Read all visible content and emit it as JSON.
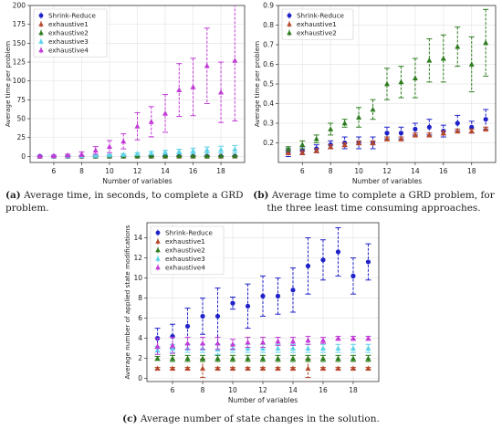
{
  "captions": {
    "a_tag": "(a)",
    "a_text": "Average time, in seconds, to complete a GRD problem.",
    "b_tag": "(b)",
    "b_text": "Average time to complete a GRD problem, for the three least time consuming approaches.",
    "c_tag": "(c)",
    "c_text": "Average number of state changes in the solution."
  },
  "colors": {
    "Shrink-Reduce": "#1f22c8",
    "exhaustive1": "#b5482a",
    "exhaustive2": "#2e7d1f",
    "exhaustive3": "#5fd3e8",
    "exhaustive4": "#c23bd6"
  },
  "chart_data": [
    {
      "type": "scatter",
      "title": "",
      "xlabel": "Number of variables",
      "ylabel": "Average time per problem",
      "xlim": [
        4.3,
        19.7
      ],
      "ylim": [
        -8,
        200
      ],
      "xticks": [
        6,
        8,
        10,
        12,
        14,
        16,
        18
      ],
      "yticks": [
        0,
        25,
        50,
        75,
        100,
        125,
        150,
        175,
        200
      ],
      "legend_position": "top-left",
      "grid": true,
      "series": [
        {
          "name": "Shrink-Reduce",
          "marker": "circle",
          "x": [
            5,
            6,
            7,
            8,
            9,
            10,
            11,
            12,
            13,
            14,
            15,
            16,
            17,
            18,
            19
          ],
          "y": [
            0.15,
            0.16,
            0.17,
            0.19,
            0.2,
            0.2,
            0.2,
            0.25,
            0.25,
            0.27,
            0.28,
            0.26,
            0.3,
            0.28,
            0.32
          ],
          "err": [
            0.02,
            0.02,
            0.02,
            0.02,
            0.03,
            0.03,
            0.03,
            0.03,
            0.03,
            0.03,
            0.04,
            0.03,
            0.04,
            0.03,
            0.05
          ]
        },
        {
          "name": "exhaustive1",
          "marker": "triangle",
          "x": [
            5,
            6,
            7,
            8,
            9,
            10,
            11,
            12,
            13,
            14,
            15,
            16,
            17,
            18,
            19
          ],
          "y": [
            0.15,
            0.15,
            0.16,
            0.18,
            0.19,
            0.2,
            0.2,
            0.22,
            0.22,
            0.24,
            0.24,
            0.25,
            0.26,
            0.26,
            0.27
          ],
          "err": [
            0.01,
            0.01,
            0.01,
            0.01,
            0.01,
            0.01,
            0.01,
            0.01,
            0.01,
            0.01,
            0.01,
            0.01,
            0.01,
            0.01,
            0.01
          ]
        },
        {
          "name": "exhaustive2",
          "marker": "triangle",
          "x": [
            5,
            6,
            7,
            8,
            9,
            10,
            11,
            12,
            13,
            14,
            15,
            16,
            17,
            18,
            19
          ],
          "y": [
            0.17,
            0.19,
            0.22,
            0.27,
            0.3,
            0.33,
            0.37,
            0.5,
            0.51,
            0.53,
            0.62,
            0.63,
            0.69,
            0.6,
            0.71
          ],
          "err": [
            0.01,
            0.02,
            0.02,
            0.03,
            0.02,
            0.05,
            0.05,
            0.08,
            0.08,
            0.1,
            0.11,
            0.12,
            0.1,
            0.14,
            0.17
          ]
        },
        {
          "name": "exhaustive3",
          "marker": "triangle",
          "x": [
            5,
            6,
            7,
            8,
            9,
            10,
            11,
            12,
            13,
            14,
            15,
            16,
            17,
            18,
            19
          ],
          "y": [
            0.2,
            0.3,
            0.5,
            0.8,
            1.2,
            1.8,
            2.5,
            3.5,
            4.5,
            5.5,
            6.5,
            7.5,
            8.5,
            9,
            9.5
          ],
          "err": [
            0.1,
            0.2,
            0.3,
            0.4,
            0.6,
            0.9,
            1.2,
            1.5,
            2,
            2.5,
            3,
            3.5,
            4,
            4.5,
            5
          ]
        },
        {
          "name": "exhaustive4",
          "marker": "triangle",
          "x": [
            5,
            6,
            7,
            8,
            9,
            10,
            11,
            12,
            13,
            14,
            15,
            16,
            17,
            18,
            19
          ],
          "y": [
            0.3,
            0.8,
            1.5,
            3,
            8,
            13,
            20,
            40,
            46,
            57,
            88,
            92,
            120,
            85,
            127
          ],
          "err": [
            0.3,
            0.8,
            1.5,
            3,
            5,
            8,
            10,
            18,
            20,
            25,
            35,
            38,
            50,
            40,
            80
          ]
        }
      ]
    },
    {
      "type": "scatter",
      "title": "",
      "xlabel": "Number of variables",
      "ylabel": "Average time per problem",
      "xlim": [
        4.3,
        19.7
      ],
      "ylim": [
        0.1,
        0.9
      ],
      "xticks": [
        6,
        8,
        10,
        12,
        14,
        16,
        18
      ],
      "yticks": [
        0.2,
        0.3,
        0.4,
        0.5,
        0.6,
        0.7,
        0.8,
        0.9
      ],
      "legend_position": "top-left",
      "grid": true,
      "series_ref": [
        "Shrink-Reduce",
        "exhaustive1",
        "exhaustive2"
      ]
    },
    {
      "type": "scatter",
      "title": "",
      "xlabel": "Number of variables",
      "ylabel": "Average number of applied state modifications",
      "xlim": [
        4.3,
        19.7
      ],
      "ylim": [
        -0.3,
        15.5
      ],
      "xticks": [
        6,
        8,
        10,
        12,
        14,
        16,
        18
      ],
      "yticks": [
        0,
        2,
        4,
        6,
        8,
        10,
        12,
        14
      ],
      "legend_position": "top-left",
      "grid": true,
      "series": [
        {
          "name": "Shrink-Reduce",
          "marker": "circle",
          "x": [
            5,
            6,
            7,
            8,
            9,
            10,
            11,
            12,
            13,
            14,
            15,
            16,
            17,
            18,
            19
          ],
          "y": [
            4,
            4.2,
            5.2,
            6.2,
            6.2,
            7.5,
            7.2,
            8.2,
            8.2,
            8.8,
            11.2,
            11.8,
            12.6,
            10.2,
            11.6
          ],
          "err": [
            1,
            1.2,
            1.8,
            1.8,
            2.8,
            0.6,
            2.2,
            2,
            1.8,
            2.2,
            2.8,
            2,
            2.4,
            1.8,
            1.8
          ]
        },
        {
          "name": "exhaustive1",
          "marker": "triangle",
          "x": [
            5,
            6,
            7,
            8,
            9,
            10,
            11,
            12,
            13,
            14,
            15,
            16,
            17,
            18,
            19
          ],
          "y": [
            1,
            1,
            1,
            1,
            1,
            1,
            1,
            1,
            1,
            1,
            1,
            1,
            1,
            1,
            1
          ],
          "err": [
            0.1,
            0.1,
            0.1,
            0.9,
            0.1,
            0.1,
            0.1,
            0.1,
            0.1,
            0.1,
            0.9,
            0.1,
            0.1,
            0.1,
            0.1
          ]
        },
        {
          "name": "exhaustive2",
          "marker": "triangle",
          "x": [
            5,
            6,
            7,
            8,
            9,
            10,
            11,
            12,
            13,
            14,
            15,
            16,
            17,
            18,
            19
          ],
          "y": [
            2,
            2,
            2,
            2,
            2,
            2,
            2,
            2,
            2,
            2,
            2,
            2,
            2,
            2,
            2
          ],
          "err": [
            0.2,
            0.3,
            0.3,
            0.3,
            0.3,
            0.3,
            0.3,
            0.3,
            0.3,
            0.3,
            0.3,
            0.3,
            0.3,
            0.3,
            0.3
          ]
        },
        {
          "name": "exhaustive3",
          "marker": "triangle",
          "x": [
            5,
            6,
            7,
            8,
            9,
            10,
            11,
            12,
            13,
            14,
            15,
            16,
            17,
            18,
            19
          ],
          "y": [
            2.8,
            3,
            3,
            3,
            2.9,
            3,
            3,
            3,
            3,
            3,
            3,
            3,
            3,
            3,
            3
          ],
          "err": [
            0.4,
            0.4,
            0.4,
            0.4,
            0.5,
            0.4,
            0.4,
            0.4,
            0.4,
            0.4,
            0.4,
            0.4,
            0.4,
            0.4,
            0.4
          ]
        },
        {
          "name": "exhaustive4",
          "marker": "triangle",
          "x": [
            5,
            6,
            7,
            8,
            9,
            10,
            11,
            12,
            13,
            14,
            15,
            16,
            17,
            18,
            19
          ],
          "y": [
            3.2,
            3.3,
            3.5,
            3.5,
            3.5,
            3.4,
            3.6,
            3.6,
            3.7,
            3.7,
            3.8,
            3.8,
            4,
            4,
            4
          ],
          "err": [
            0.8,
            0.8,
            0.6,
            0.6,
            0.6,
            0.5,
            0.5,
            0.5,
            0.4,
            0.4,
            0.4,
            0.3,
            0.2,
            0.2,
            0.2
          ]
        }
      ]
    }
  ]
}
